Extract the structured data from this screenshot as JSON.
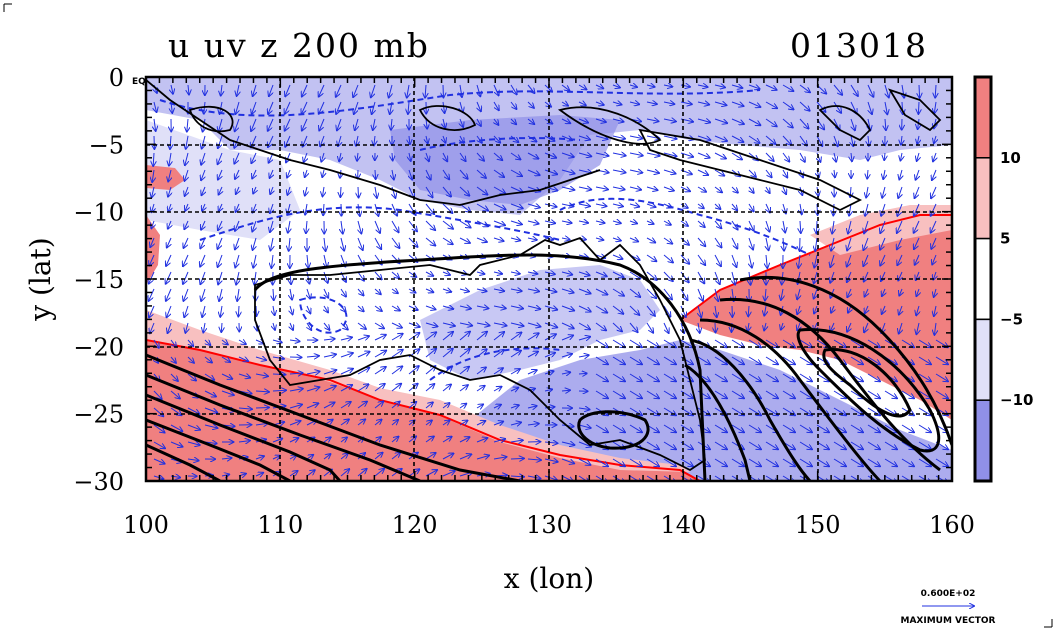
{
  "figure": {
    "title_left": "u uv z 200 mb",
    "title_right": "013018"
  },
  "chart_data": {
    "type": "heatmap",
    "xlabel": "x (lon)",
    "ylabel": "y (lat)",
    "xlim": [
      100,
      160
    ],
    "ylim": [
      -30,
      0
    ],
    "x_ticks": [
      "100",
      "110",
      "120",
      "130",
      "140",
      "150",
      "160"
    ],
    "y_ticks": [
      "0",
      "−5",
      "−10",
      "−15",
      "−20",
      "−25",
      "−30"
    ],
    "corner_label": "EQ",
    "grid": true,
    "colorbar": {
      "labels": [
        "10",
        "5",
        "−5",
        "−10"
      ],
      "colors": [
        "#f08080",
        "#f8c0c0",
        "#ffffff",
        "#e0e0f8",
        "#9090e8"
      ],
      "legend_position": "right"
    },
    "vector_key": {
      "magnitude": "0.600E+02",
      "label": "MAXIMUM VECTOR"
    },
    "colors": {
      "strong_positive": "#f08080",
      "weak_positive": "#f8c0c0",
      "weak_negative": "#e0e0f8",
      "strong_negative": "#9090e8",
      "vector": "#2030e0",
      "contour_positive": "#ff0000",
      "contour_negative": "#2030e0"
    }
  }
}
